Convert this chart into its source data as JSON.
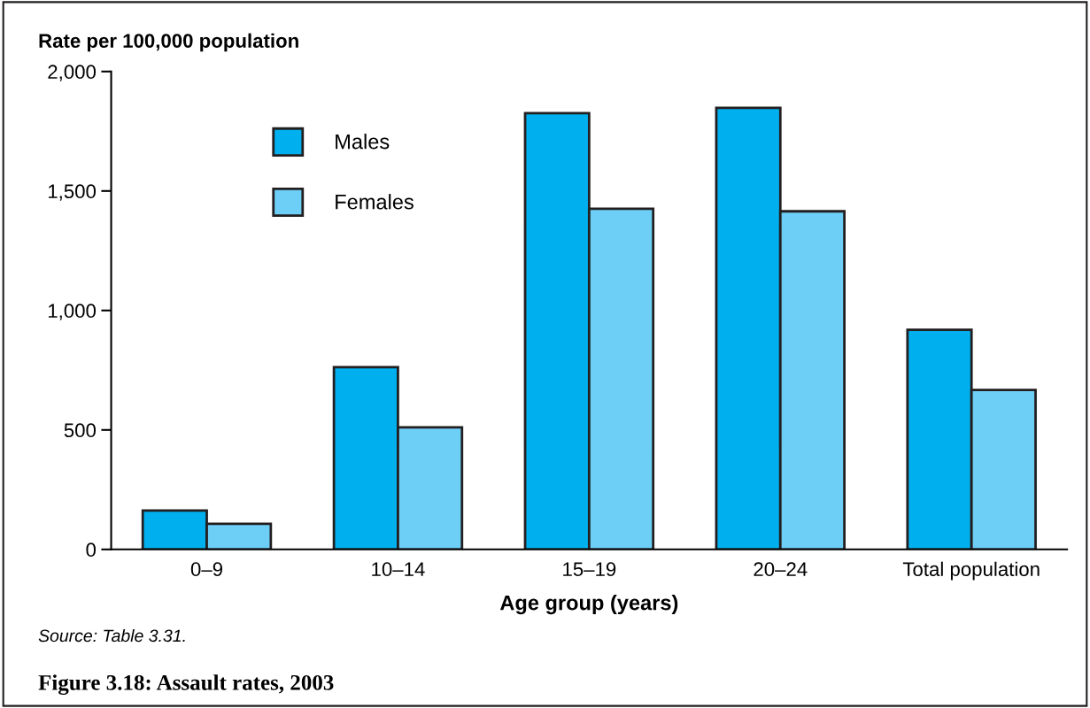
{
  "chart_data": {
    "type": "bar",
    "title": "Figure 3.18: Assault rates, 2003",
    "xlabel": "Age group (years)",
    "ylabel": "Rate per 100,000 population",
    "categories": [
      "0–9",
      "10–14",
      "15–19",
      "20–24",
      "Total population"
    ],
    "series": [
      {
        "name": "Males",
        "color": "#00b0ee",
        "values": [
          163,
          763,
          1826,
          1848,
          919
        ]
      },
      {
        "name": "Females",
        "color": "#6dcff6",
        "values": [
          107,
          511,
          1426,
          1415,
          667
        ]
      }
    ],
    "ylim": [
      0,
      2000
    ],
    "yticks": [
      0,
      {
        "value": 500,
        "label": "500"
      },
      {
        "value": 1000,
        "label": "1,000"
      },
      {
        "value": 1500,
        "label": "1,500"
      },
      {
        "value": 2000,
        "label": "2,000"
      }
    ],
    "grid": false,
    "legend": "top left",
    "annotations": [
      "Source: Table 3.31."
    ]
  }
}
